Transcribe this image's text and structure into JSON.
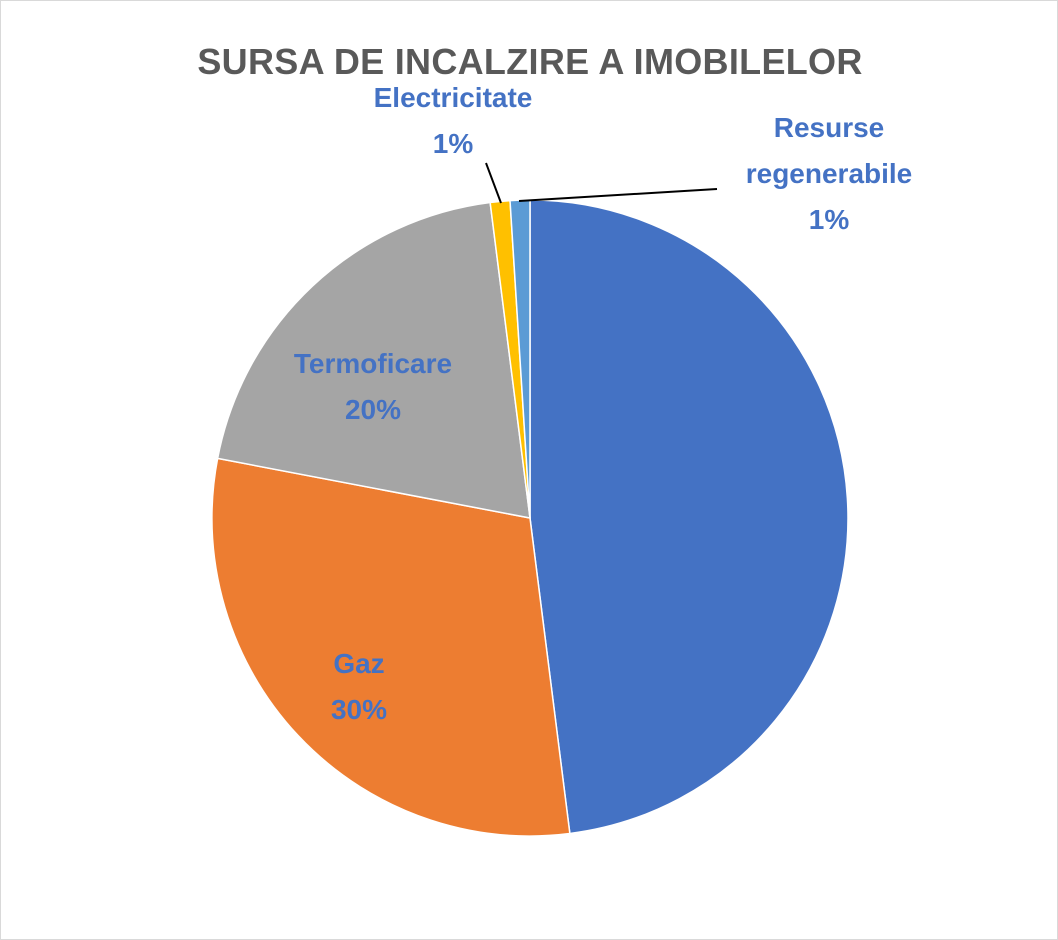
{
  "chart_data": {
    "type": "pie",
    "title": "SURSA DE INCALZIRE A IMOBILELOR",
    "slices": [
      {
        "label": "",
        "value": 48,
        "display": "",
        "color": "#4472c4"
      },
      {
        "label": "Gaz",
        "value": 30,
        "display": "30%",
        "color": "#ed7d31"
      },
      {
        "label": "Termoficare",
        "value": 20,
        "display": "20%",
        "color": "#a5a5a5"
      },
      {
        "label": "Electricitate",
        "value": 1,
        "display": "1%",
        "color": "#ffc000"
      },
      {
        "label": "Resurse regenerabile",
        "value": 1,
        "display": "1%",
        "color": "#5b9bd5"
      }
    ],
    "label_color": "#4472c4"
  }
}
